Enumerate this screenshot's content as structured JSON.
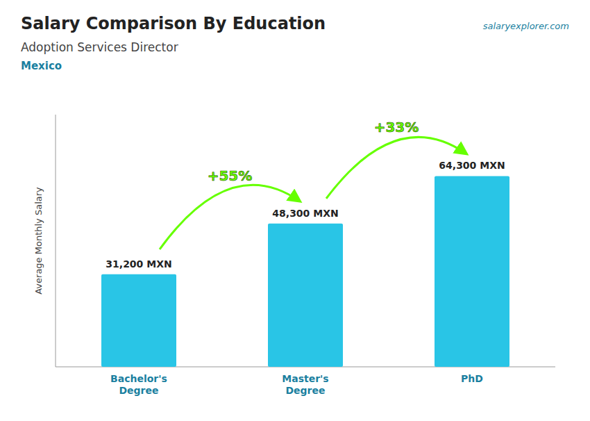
{
  "chart_data": {
    "type": "bar",
    "title": "Salary Comparison By Education",
    "subtitle": "Adoption Services Director",
    "location": "Mexico",
    "source": "salaryexplorer.com",
    "ylabel": "Average Monthly Salary",
    "categories": [
      "Bachelor's\nDegree",
      "Master's\nDegree",
      "PhD"
    ],
    "values": [
      31200,
      48300,
      64300
    ],
    "value_labels": [
      "31,200 MXN",
      "48,300 MXN",
      "64,300 MXN"
    ],
    "data_labels": true,
    "color": "#29c5e6",
    "annotations": [
      {
        "text": "+55%",
        "color": "#66ff00"
      },
      {
        "text": "+33%",
        "color": "#66ff00"
      }
    ],
    "ylim": [
      0,
      85000
    ],
    "tick_labels": "x",
    "grid": false
  }
}
